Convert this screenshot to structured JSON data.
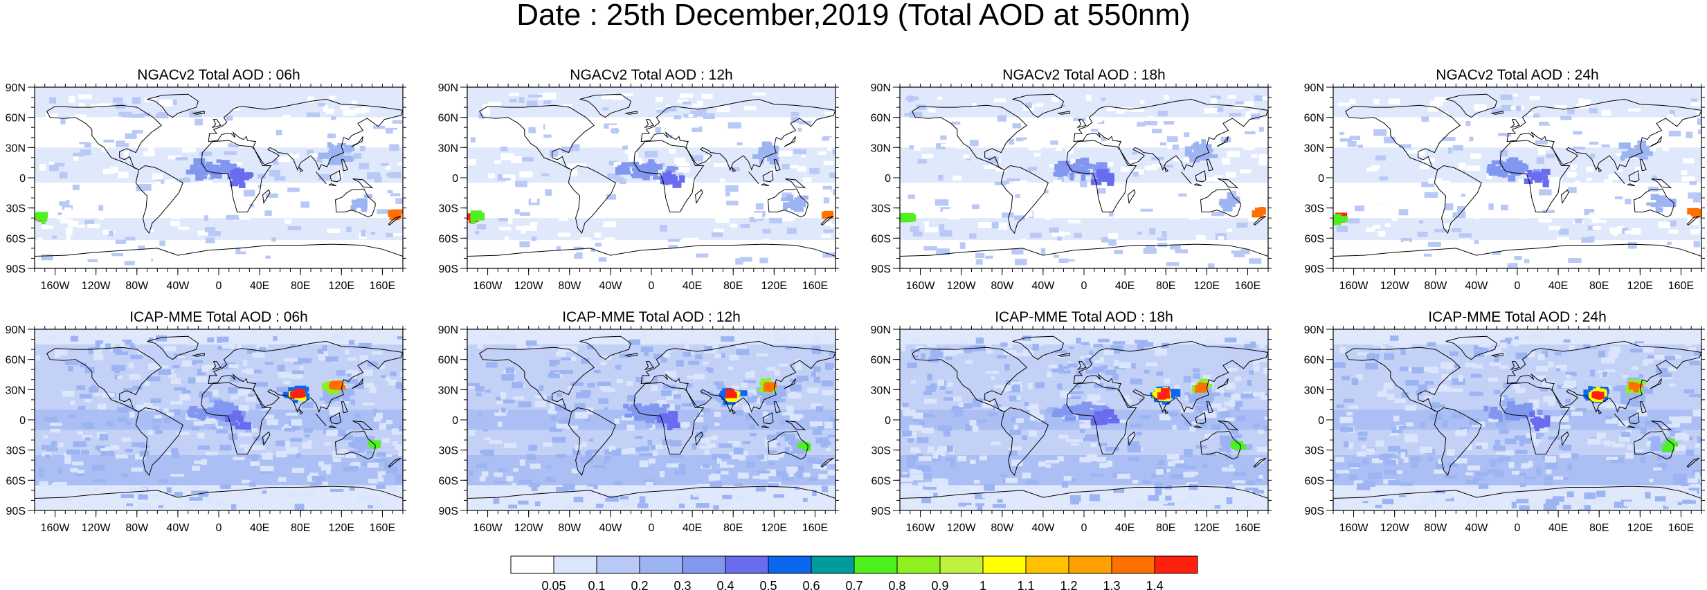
{
  "title": "Date : 25th December,2019 (Total AOD at 550nm)",
  "chart_data": [
    {
      "type": "heatmap",
      "title": "NGACv2 Total AOD : 06h",
      "model": "NGACv2",
      "forecast_hour": "06h"
    },
    {
      "type": "heatmap",
      "title": "NGACv2 Total AOD : 12h",
      "model": "NGACv2",
      "forecast_hour": "12h"
    },
    {
      "type": "heatmap",
      "title": "NGACv2 Total AOD : 18h",
      "model": "NGACv2",
      "forecast_hour": "18h"
    },
    {
      "type": "heatmap",
      "title": "NGACv2 Total AOD : 24h",
      "model": "NGACv2",
      "forecast_hour": "24h"
    },
    {
      "type": "heatmap",
      "title": "ICAP-MME Total AOD : 06h",
      "model": "ICAP-MME",
      "forecast_hour": "06h"
    },
    {
      "type": "heatmap",
      "title": "ICAP-MME Total AOD : 12h",
      "model": "ICAP-MME",
      "forecast_hour": "12h"
    },
    {
      "type": "heatmap",
      "title": "ICAP-MME Total AOD : 18h",
      "model": "ICAP-MME",
      "forecast_hour": "18h"
    },
    {
      "type": "heatmap",
      "title": "ICAP-MME Total AOD : 24h",
      "model": "ICAP-MME",
      "forecast_hour": "24h"
    }
  ],
  "axes": {
    "x_ticks": [
      "160W",
      "120W",
      "80W",
      "40W",
      "0",
      "40E",
      "80E",
      "120E",
      "160E"
    ],
    "x_tick_lons": [
      -160,
      -120,
      -80,
      -40,
      0,
      40,
      80,
      120,
      160
    ],
    "y_ticks": [
      "90N",
      "60N",
      "30N",
      "0",
      "30S",
      "60S",
      "90S"
    ],
    "y_tick_lats": [
      90,
      60,
      30,
      0,
      -30,
      -60,
      -90
    ],
    "xlim": [
      -180,
      180
    ],
    "ylim": [
      -90,
      90
    ]
  },
  "colorbar": {
    "labels": [
      "0.05",
      "0.1",
      "0.2",
      "0.3",
      "0.4",
      "0.5",
      "0.6",
      "0.7",
      "0.8",
      "0.9",
      "1",
      "1.1",
      "1.2",
      "1.3",
      "1.4"
    ],
    "colors": [
      "#ffffff",
      "#dbe5fb",
      "#b9c9f6",
      "#9db4f3",
      "#8197f0",
      "#6a6cf0",
      "#0a67f0",
      "#009c9c",
      "#4ff020",
      "#8ff020",
      "#c0f040",
      "#ffff00",
      "#ffc000",
      "#ffa000",
      "#ff7000",
      "#ff2010"
    ]
  }
}
